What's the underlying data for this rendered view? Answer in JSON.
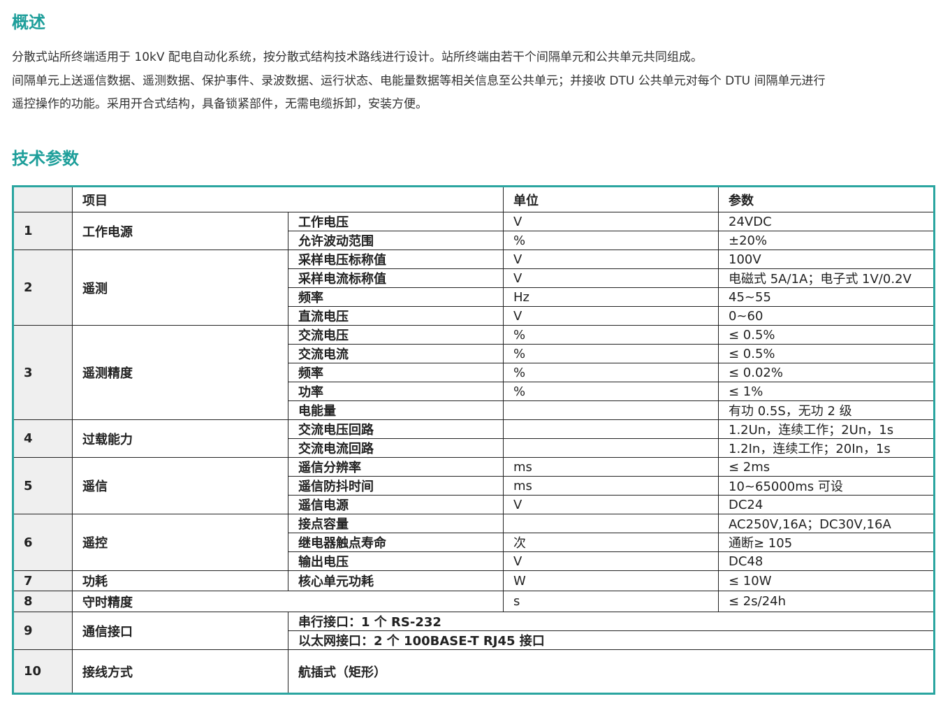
{
  "overview": {
    "title": "概述",
    "paragraphs": [
      "分散式站所终端适用于 10kV 配电自动化系统，按分散式结构技术路线进行设计。站所终端由若干个间隔单元和公共单元共同组成。",
      "间隔单元上送遥信数据、遥测数据、保护事件、录波数据、运行状态、电能量数据等相关信息至公共单元；并接收 DTU 公共单元对每个 DTU 间隔单元进行",
      "遥控操作的功能。采用开合式结构，具备锁紧部件，无需电缆拆卸，安装方便。"
    ]
  },
  "specs": {
    "title": "技术参数",
    "headers": [
      "",
      "项目",
      "单位",
      "参数"
    ],
    "groups": [
      {
        "no": "1",
        "item": "工作电源",
        "rows": [
          {
            "sub": "工作电压",
            "unit": "V",
            "param": "24VDC"
          },
          {
            "sub": "允许波动范围",
            "unit": "%",
            "param": "±20%"
          }
        ]
      },
      {
        "no": "2",
        "item": "遥测",
        "rows": [
          {
            "sub": "采样电压标称值",
            "unit": "V",
            "param": "100V"
          },
          {
            "sub": "采样电流标称值",
            "unit": "V",
            "param": "电磁式 5A/1A；电子式 1V/0.2V"
          },
          {
            "sub": "频率",
            "unit": "Hz",
            "param": "45~55"
          },
          {
            "sub": "直流电压",
            "unit": "V",
            "param": "0~60"
          }
        ]
      },
      {
        "no": "3",
        "item": "遥测精度",
        "rows": [
          {
            "sub": "交流电压",
            "unit": "%",
            "param": "≤ 0.5%"
          },
          {
            "sub": "交流电流",
            "unit": "%",
            "param": "≤ 0.5%"
          },
          {
            "sub": "频率",
            "unit": "%",
            "param": "≤ 0.02%"
          },
          {
            "sub": "功率",
            "unit": "%",
            "param": "≤ 1%"
          },
          {
            "sub": "电能量",
            "unit": "",
            "param": "有功 0.5S，无功 2 级"
          }
        ]
      },
      {
        "no": "4",
        "item": "过载能力",
        "rows": [
          {
            "sub": "交流电压回路",
            "unit": "",
            "param": "1.2Un，连续工作；2Un，1s"
          },
          {
            "sub": "交流电流回路",
            "unit": "",
            "param": "1.2In，连续工作；20In，1s"
          }
        ]
      },
      {
        "no": "5",
        "item": "遥信",
        "rows": [
          {
            "sub": "遥信分辨率",
            "unit": "ms",
            "param": "≤ 2ms"
          },
          {
            "sub": "遥信防抖时间",
            "unit": "ms",
            "param": "10~65000ms 可设"
          },
          {
            "sub": "遥信电源",
            "unit": "V",
            "param": "DC24"
          }
        ]
      },
      {
        "no": "6",
        "item": "遥控",
        "rows": [
          {
            "sub": "接点容量",
            "unit": "",
            "param": "AC250V,16A；DC30V,16A"
          },
          {
            "sub": "继电器触点寿命",
            "unit": "次",
            "param": "通断≥ 105"
          },
          {
            "sub": "输出电压",
            "unit": "V",
            "param": "DC48"
          }
        ]
      },
      {
        "no": "7",
        "item": "功耗",
        "rows": [
          {
            "sub": "核心单元功耗",
            "unit": "W",
            "param": "≤ 10W"
          }
        ]
      },
      {
        "no": "8",
        "item": "守时精度",
        "nosub": true,
        "rows": [
          {
            "unit": "s",
            "param": "≤ 2s/24h"
          }
        ]
      },
      {
        "no": "9",
        "item": "通信接口",
        "wide": true,
        "rows": [
          {
            "sub": "串行接口：1 个 RS-232"
          },
          {
            "sub": "以太网接口：2 个 100BASE-T RJ45 接口"
          }
        ]
      },
      {
        "no": "10",
        "item": "接线方式",
        "wide": true,
        "rows": [
          {
            "sub": "航插式（矩形）"
          }
        ]
      }
    ]
  }
}
